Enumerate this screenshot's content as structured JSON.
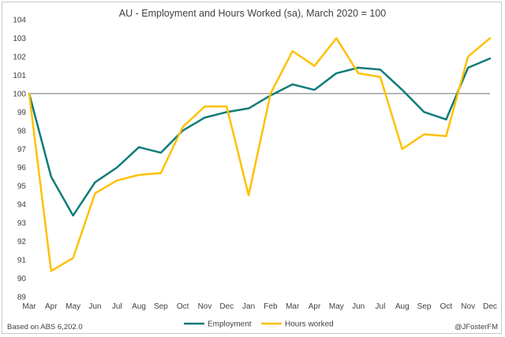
{
  "chart_data": {
    "type": "line",
    "title": "AU - Employment and Hours Worked (sa), March 2020 = 100",
    "categories": [
      "Mar",
      "Apr",
      "May",
      "Jun",
      "Jul",
      "Aug",
      "Sep",
      "Oct",
      "Nov",
      "Dec",
      "Jan",
      "Feb",
      "Mar",
      "Apr",
      "May",
      "Jun",
      "Jul",
      "Aug",
      "Sep",
      "Oct",
      "Nov",
      "Dec"
    ],
    "ylim": [
      89,
      104
    ],
    "yticks": [
      89,
      90,
      91,
      92,
      93,
      94,
      95,
      96,
      97,
      98,
      99,
      100,
      101,
      102,
      103,
      104
    ],
    "reference_line": 100,
    "grid": false,
    "legend_position": "bottom",
    "series": [
      {
        "name": "Employment",
        "color": "#0f7b78",
        "values": [
          100.0,
          95.5,
          93.4,
          95.2,
          96.0,
          97.1,
          96.8,
          98.0,
          98.7,
          99.0,
          99.2,
          99.9,
          100.5,
          100.2,
          101.1,
          101.4,
          101.3,
          100.2,
          99.0,
          98.6,
          101.4,
          101.9
        ]
      },
      {
        "name": "Hours worked",
        "color": "#ffc000",
        "values": [
          100.0,
          90.4,
          91.1,
          94.6,
          95.3,
          95.6,
          95.7,
          98.2,
          99.3,
          99.3,
          94.5,
          100.0,
          102.3,
          101.5,
          103.0,
          101.1,
          100.9,
          97.0,
          97.8,
          97.7,
          102.0,
          103.0
        ]
      }
    ]
  },
  "footer": {
    "source": "Based on ABS 6,202.0",
    "credit": "@JFosterFM"
  }
}
